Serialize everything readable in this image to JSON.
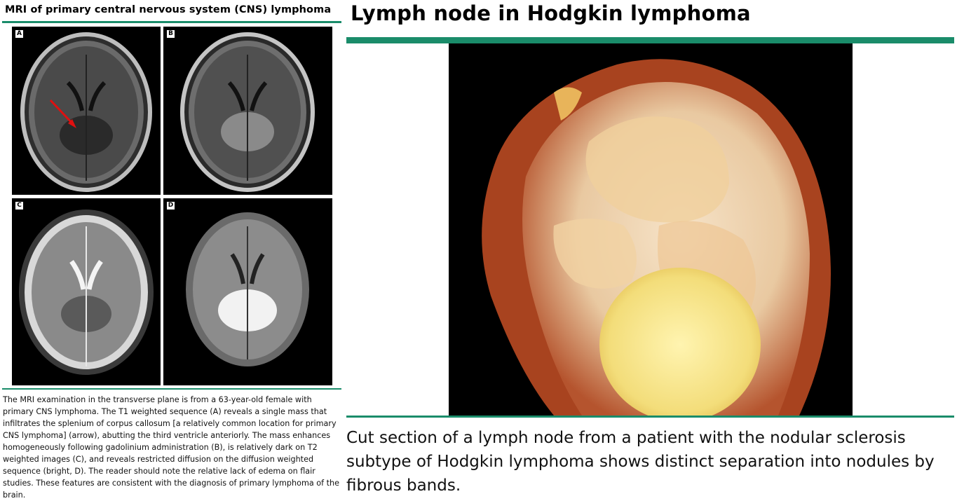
{
  "left": {
    "title": "MRI of primary central nervous system (CNS) lymphoma",
    "panels": [
      {
        "label": "A",
        "sequence": "T1 weighted"
      },
      {
        "label": "B",
        "sequence": "T1 post-gadolinium"
      },
      {
        "label": "C",
        "sequence": "T2 weighted"
      },
      {
        "label": "D",
        "sequence": "Diffusion weighted"
      }
    ],
    "caption": "The MRI examination in the transverse plane is from a 63-year-old female with primary CNS lymphoma. The T1 weighted sequence (A) reveals a single mass that infiltrates the splenium of corpus callosum [a relatively common location for primary CNS lymphoma] (arrow), abutting the third ventricle anteriorly. The mass enhances homogeneously following gadolinium administration (B), is relatively dark on T2 weighted images (C), and reveals restricted diffusion on the diffusion weighted sequence (bright, D). The reader should note the relative lack of edema on flair studies. These features are consistent with the diagnosis of primary lymphoma of the brain."
  },
  "right": {
    "title": "Lymph node in Hodgkin lymphoma",
    "caption": "Cut section of a lymph node from a patient with the nodular sclerosis subtype of Hodgkin lymphoma shows distinct separation into nodules by fibrous bands."
  },
  "colors": {
    "rule": "#1a8c6a",
    "arrow": "#e01010"
  }
}
